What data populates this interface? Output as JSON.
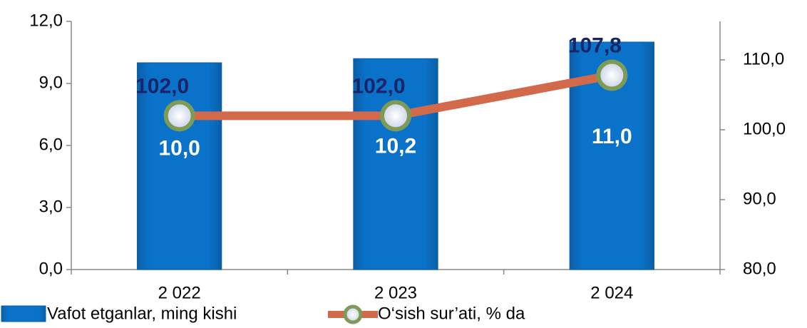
{
  "chart_data": {
    "type": "bar-line",
    "categories": [
      "2 022",
      "2 023",
      "2 024"
    ],
    "series": [
      {
        "name": "Vafot etganlar, ming kishi",
        "color": "#0a72c8",
        "values": [
          10.0,
          10.2,
          11.0
        ],
        "value_labels": [
          "10,0",
          "10,2",
          "11,0"
        ]
      },
      {
        "name": "O‘sish sur’ati, % da",
        "color": "#d2694b",
        "axis": "y2",
        "values": [
          102.0,
          102.0,
          107.8
        ],
        "value_labels": [
          "102,0",
          "102,0",
          "107,8"
        ]
      }
    ],
    "ylim": [
      0,
      12
    ],
    "yticks": [
      {
        "value": 0,
        "label": "0,0"
      },
      {
        "value": 3,
        "label": "3,0"
      },
      {
        "value": 6,
        "label": "6,0"
      },
      {
        "value": 9,
        "label": "9,0"
      },
      {
        "value": 12,
        "label": "12,0"
      }
    ],
    "y2lim": [
      80,
      115.5
    ],
    "y2ticks": [
      {
        "value": 80,
        "label": "80,0"
      },
      {
        "value": 90,
        "label": "90,0"
      },
      {
        "value": 100,
        "label": "100,0"
      },
      {
        "value": 110,
        "label": "110,0"
      }
    ]
  }
}
